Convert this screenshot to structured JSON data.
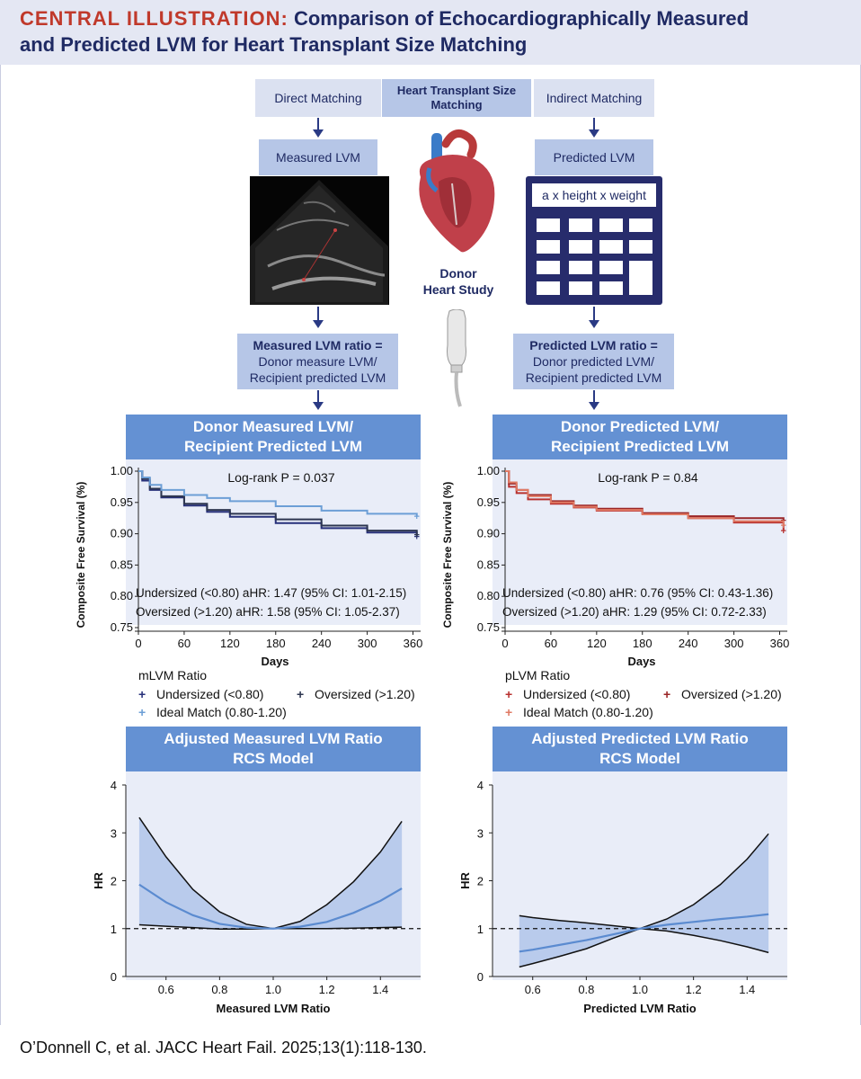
{
  "header": {
    "title_prefix": "CENTRAL ILLUSTRATION:",
    "title_line1": "Comparison of Echocardiographically Measured",
    "title_line2": "and Predicted LVM for Heart Transplant Size Matching"
  },
  "flow": {
    "direct_matching": "Direct Matching",
    "center_title": "Heart Transplant Size Matching",
    "indirect_matching": "Indirect Matching",
    "measured_lvm": "Measured LVM",
    "predicted_lvm": "Predicted LVM",
    "formula": "a x height x weight",
    "donor_heart_study": "Donor Heart Study",
    "measured_ratio_title": "Measured LVM ratio =",
    "measured_ratio_body": "Donor measure LVM/ Recipient predicted LVM",
    "predicted_ratio_title": "Predicted LVM ratio =",
    "predicted_ratio_body": "Donor predicted LVM/ Recipient predicted LVM"
  },
  "panels": {
    "km_left_title": "Donor Measured LVM/ Recipient Predicted LVM",
    "km_right_title": "Donor Predicted LVM/ Recipient Predicted LVM",
    "rcs_left_title": "Adjusted Measured LVM Ratio RCS Model",
    "rcs_right_title": "Adjusted Predicted LVM Ratio RCS Model"
  },
  "legends": {
    "left_title": "mLVM Ratio",
    "right_title": "pLVM Ratio",
    "undersized": "Undersized (<0.80)",
    "oversized": "Oversized (>1.20)",
    "ideal": "Ideal Match (0.80-1.20)"
  },
  "colors": {
    "header_bg": "#e4e7f3",
    "title_accent": "#c0392b",
    "title_text": "#1f2a63",
    "panel_head": "#6491d3",
    "plot_bg": "#e9edf8",
    "km_left_undersized": "#27307a",
    "km_left_oversized": "#2d3650",
    "km_left_ideal": "#6d9fd6",
    "km_right_undersized": "#b8312f",
    "km_right_oversized": "#9a2526",
    "km_right_ideal": "#e07a64",
    "rcs_line": "#5b8bd0",
    "rcs_band": "#b9cbec"
  },
  "chart_data": [
    {
      "type": "line",
      "title": "Donor Measured LVM/ Recipient Predicted LVM",
      "xlabel": "Days",
      "ylabel": "Composite Free Survival (%)",
      "xlim": [
        0,
        370
      ],
      "ylim": [
        0.75,
        1.0
      ],
      "xticks": [
        "0",
        "60",
        "120",
        "180",
        "240",
        "300",
        "360"
      ],
      "yticks": [
        "0.75",
        "0.80",
        "0.85",
        "0.90",
        "0.95",
        "1.00"
      ],
      "annotation": "Log-rank P = 0.037",
      "stat_lines": [
        "Undersized (<0.80) aHR: 1.47 (95% CI: 1.01-2.15)",
        "Oversized (>1.20) aHR: 1.58 (95% CI: 1.05-2.37)"
      ],
      "legend_title": "mLVM Ratio",
      "series": [
        {
          "name": "Undersized (<0.80)",
          "color": "#27307a",
          "x": [
            0,
            5,
            15,
            30,
            60,
            90,
            120,
            180,
            240,
            300,
            365
          ],
          "y": [
            1.0,
            0.985,
            0.97,
            0.958,
            0.945,
            0.935,
            0.927,
            0.917,
            0.909,
            0.902,
            0.896
          ]
        },
        {
          "name": "Oversized (>1.20)",
          "color": "#2d3650",
          "x": [
            0,
            5,
            15,
            30,
            60,
            90,
            120,
            180,
            240,
            300,
            365
          ],
          "y": [
            1.0,
            0.988,
            0.972,
            0.96,
            0.948,
            0.938,
            0.932,
            0.923,
            0.913,
            0.905,
            0.899
          ]
        },
        {
          "name": "Ideal Match (0.80-1.20)",
          "color": "#6d9fd6",
          "x": [
            0,
            5,
            15,
            30,
            60,
            90,
            120,
            180,
            240,
            300,
            365
          ],
          "y": [
            1.0,
            0.99,
            0.978,
            0.97,
            0.962,
            0.957,
            0.952,
            0.944,
            0.937,
            0.932,
            0.928
          ]
        }
      ]
    },
    {
      "type": "line",
      "title": "Donor Predicted LVM/ Recipient Predicted LVM",
      "xlabel": "Days",
      "ylabel": "Composite Free Survival (%)",
      "xlim": [
        0,
        370
      ],
      "ylim": [
        0.75,
        1.0
      ],
      "xticks": [
        "0",
        "60",
        "120",
        "180",
        "240",
        "300",
        "360"
      ],
      "yticks": [
        "0.75",
        "0.80",
        "0.85",
        "0.90",
        "0.95",
        "1.00"
      ],
      "annotation": "Log-rank P = 0.84",
      "stat_lines": [
        "Undersized (<0.80) aHR: 0.76 (95% CI: 0.43-1.36)",
        "Oversized (>1.20) aHR: 1.29 (95% CI: 0.72-2.33)"
      ],
      "legend_title": "pLVM Ratio",
      "series": [
        {
          "name": "Undersized (<0.80)",
          "color": "#b8312f",
          "x": [
            0,
            5,
            15,
            30,
            60,
            90,
            120,
            180,
            240,
            300,
            365
          ],
          "y": [
            1.0,
            0.975,
            0.965,
            0.955,
            0.948,
            0.942,
            0.937,
            0.932,
            0.925,
            0.918,
            0.905
          ]
        },
        {
          "name": "Oversized (>1.20)",
          "color": "#9a2526",
          "x": [
            0,
            5,
            15,
            30,
            60,
            90,
            120,
            180,
            240,
            300,
            365
          ],
          "y": [
            1.0,
            0.98,
            0.97,
            0.962,
            0.952,
            0.945,
            0.94,
            0.933,
            0.928,
            0.925,
            0.922
          ]
        },
        {
          "name": "Ideal Match (0.80-1.20)",
          "color": "#e07a64",
          "x": [
            0,
            5,
            15,
            30,
            60,
            90,
            120,
            180,
            240,
            300,
            365
          ],
          "y": [
            1.0,
            0.982,
            0.97,
            0.96,
            0.95,
            0.943,
            0.938,
            0.931,
            0.925,
            0.92,
            0.914
          ]
        }
      ]
    },
    {
      "type": "area",
      "title": "Adjusted Measured LVM Ratio RCS Model",
      "xlabel": "Measured LVM Ratio",
      "ylabel": "HR",
      "xlim": [
        0.45,
        1.55
      ],
      "ylim": [
        0,
        4
      ],
      "xticks": [
        "0.6",
        "0.8",
        "1.0",
        "1.2",
        "1.4"
      ],
      "yticks": [
        "0",
        "1",
        "2",
        "3",
        "4"
      ],
      "reference_line": 1,
      "x": [
        0.5,
        0.6,
        0.7,
        0.8,
        0.9,
        1.0,
        1.1,
        1.2,
        1.3,
        1.4,
        1.48
      ],
      "hr": [
        1.92,
        1.55,
        1.28,
        1.1,
        1.02,
        1.0,
        1.04,
        1.14,
        1.33,
        1.58,
        1.84
      ],
      "ci_upper": [
        3.32,
        2.5,
        1.82,
        1.35,
        1.09,
        1.0,
        1.15,
        1.5,
        1.98,
        2.6,
        3.24
      ],
      "ci_lower": [
        1.08,
        1.05,
        1.02,
        0.99,
        0.99,
        1.0,
        1.0,
        1.0,
        1.01,
        1.02,
        1.03
      ]
    },
    {
      "type": "area",
      "title": "Adjusted Predicted LVM Ratio RCS Model",
      "xlabel": "Predicted LVM Ratio",
      "ylabel": "HR",
      "xlim": [
        0.45,
        1.55
      ],
      "ylim": [
        0,
        4
      ],
      "xticks": [
        "0.6",
        "0.8",
        "1.0",
        "1.2",
        "1.4"
      ],
      "yticks": [
        "0",
        "1",
        "2",
        "3",
        "4"
      ],
      "reference_line": 1,
      "x": [
        0.55,
        0.6,
        0.7,
        0.8,
        0.9,
        1.0,
        1.1,
        1.2,
        1.3,
        1.4,
        1.48
      ],
      "hr": [
        0.52,
        0.56,
        0.66,
        0.76,
        0.88,
        1.0,
        1.08,
        1.14,
        1.2,
        1.25,
        1.3
      ],
      "ci_upper": [
        1.27,
        1.23,
        1.17,
        1.12,
        1.06,
        1.0,
        1.2,
        1.5,
        1.92,
        2.45,
        2.98
      ],
      "ci_lower": [
        0.2,
        0.27,
        0.42,
        0.58,
        0.8,
        1.0,
        0.95,
        0.86,
        0.75,
        0.62,
        0.5
      ]
    }
  ],
  "citation": "O’Donnell C, et al. JACC Heart Fail. 2025;13(1):118-130."
}
